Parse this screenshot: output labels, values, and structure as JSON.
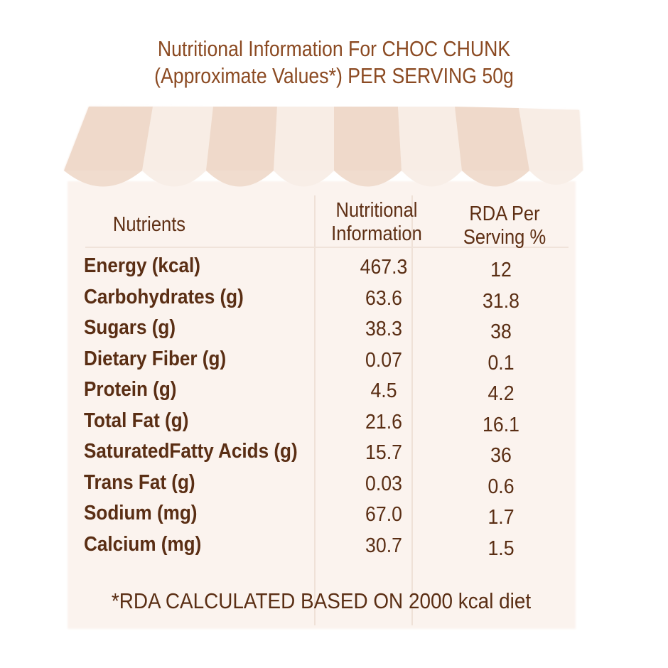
{
  "title": {
    "line1": "Nutritional Information For CHOC CHUNK",
    "line2": "(Approximate Values*) PER SERVING 50g"
  },
  "headers": {
    "nutrients": "Nutrients",
    "info_line1": "Nutritional",
    "info_line2": "Information",
    "rda_line1": "RDA Per",
    "rda_line2": "Serving %"
  },
  "rows": [
    {
      "name": "Energy (kcal)",
      "value": "467.3",
      "rda": "12"
    },
    {
      "name": "Carbohydrates (g)",
      "value": "63.6",
      "rda": "31.8"
    },
    {
      "name": "Sugars (g)",
      "value": "38.3",
      "rda": "38"
    },
    {
      "name": "Dietary Fiber (g)",
      "value": "0.07",
      "rda": "0.1"
    },
    {
      "name": "Protein (g)",
      "value": "4.5",
      "rda": "4.2"
    },
    {
      "name": "Total Fat (g)",
      "value": "21.6",
      "rda": "16.1"
    },
    {
      "name": "SaturatedFatty Acids (g)",
      "value": "15.7",
      "rda": "36"
    },
    {
      "name": "Trans Fat (g)",
      "value": "0.03",
      "rda": "0.6"
    },
    {
      "name": "Sodium (mg)",
      "value": "67.0",
      "rda": "1.7"
    },
    {
      "name": "Calcium (mg)",
      "value": "30.7",
      "rda": "1.5"
    }
  ],
  "footnote": "*RDA CALCULATED BASED ON 2000 kcal diet",
  "colors": {
    "title": "#8b4a22",
    "text": "#5a2e14",
    "panel": "#fbf3ee",
    "awning_dark": "#f1ddd0",
    "awning_light": "#f8ede5"
  }
}
